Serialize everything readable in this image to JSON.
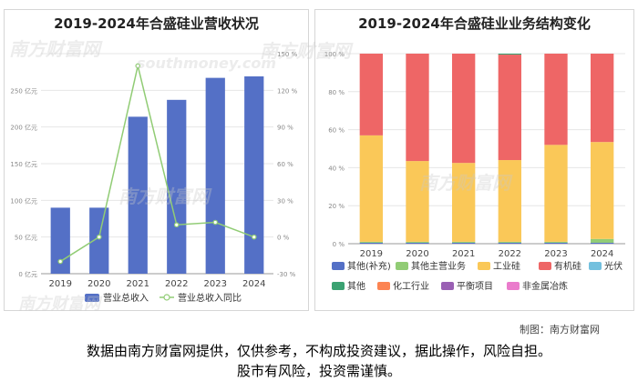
{
  "watermark": {
    "cn": "南方财富网",
    "en": "southmoney.com"
  },
  "credit": "制图：南方财富网",
  "disclaimer": {
    "line1": "数据由南方财富网提供，仅供参考，不构成投资建议，据此操作，风险自担。",
    "line2": "股市有风险，投资需谨慎。"
  },
  "chart_data": [
    {
      "type": "bar",
      "title": "2019-2024年合盛硅业营收状况",
      "categories": [
        "2019",
        "2020",
        "2021",
        "2022",
        "2023",
        "2024"
      ],
      "y_ticks": [
        "0 亿元",
        "50 亿元",
        "100 亿元",
        "150 亿元",
        "200 亿元",
        "250 亿元"
      ],
      "y2_ticks": [
        "-30 %",
        "0 %",
        "30 %",
        "60 %",
        "90 %",
        "120 %",
        "150 %"
      ],
      "ylim": [
        0,
        300
      ],
      "y2lim": [
        -30,
        150
      ],
      "grid": true,
      "legend_position": "bottom",
      "series": [
        {
          "name": "营业总收入",
          "type": "bar",
          "axis": "left",
          "color": "#5470c6",
          "values": [
            90,
            90,
            214,
            237,
            267,
            269
          ]
        },
        {
          "name": "营业总收入同比",
          "type": "line",
          "axis": "right",
          "color": "#91cc75",
          "values": [
            -20,
            0,
            140,
            10,
            12,
            0
          ]
        }
      ]
    },
    {
      "type": "bar",
      "title": "2019-2024年合盛硅业业务结构变化",
      "stacked": true,
      "categories": [
        "2019",
        "2020",
        "2021",
        "2022",
        "2023",
        "2024"
      ],
      "y_ticks": [
        "0 %",
        "20 %",
        "40 %",
        "60 %",
        "80 %",
        "100 %"
      ],
      "ylim": [
        0,
        100
      ],
      "grid": true,
      "legend_position": "bottom",
      "series": [
        {
          "name": "其他(补充)",
          "color": "#5470c6",
          "values": [
            0.5,
            0.5,
            0.5,
            0.5,
            0.5,
            0.5
          ]
        },
        {
          "name": "其他主营业务",
          "color": "#91cc75",
          "values": [
            0.5,
            0.5,
            0.5,
            0.5,
            0.5,
            2
          ]
        },
        {
          "name": "工业硅",
          "color": "#fac858",
          "values": [
            56,
            42.5,
            41.5,
            43,
            51,
            51
          ]
        },
        {
          "name": "有机硅",
          "color": "#ee6666",
          "values": [
            43,
            56.5,
            57.5,
            55.5,
            48,
            46.5
          ]
        },
        {
          "name": "光伏",
          "color": "#73c0de",
          "values": [
            0,
            0,
            0,
            0,
            0,
            0
          ]
        },
        {
          "name": "其他",
          "color": "#3ba272",
          "values": [
            0,
            0,
            0,
            0.5,
            0,
            0
          ]
        },
        {
          "name": "化工行业",
          "color": "#fc8452",
          "values": [
            0,
            0,
            0,
            0,
            0,
            0
          ]
        },
        {
          "name": "平衡项目",
          "color": "#9a60b4",
          "values": [
            0,
            0,
            0,
            0,
            0,
            0
          ]
        },
        {
          "name": "非金属冶炼",
          "color": "#ea7ccc",
          "values": [
            0,
            0,
            0,
            0,
            0,
            0
          ]
        }
      ]
    }
  ]
}
